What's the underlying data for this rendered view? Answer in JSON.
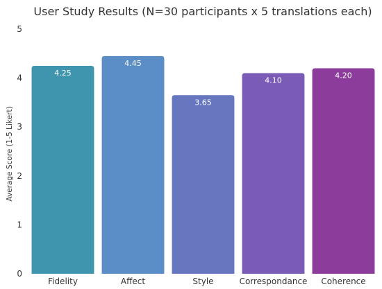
{
  "chart_data": {
    "type": "bar",
    "title": "User Study Results (N=30 participants x 5 translations each)",
    "xlabel": "",
    "ylabel": "Average Score (1-5 Likert)",
    "ylim": [
      0,
      5
    ],
    "yticks": [
      "0",
      "1",
      "2",
      "3",
      "4",
      "5"
    ],
    "categories": [
      "Fidelity",
      "Affect",
      "Style",
      "Correspondance",
      "Coherence"
    ],
    "values": [
      4.25,
      4.45,
      3.65,
      4.1,
      4.2
    ],
    "value_labels": [
      "4.25",
      "4.45",
      "3.65",
      "4.10",
      "4.20"
    ],
    "colors": [
      "#3e95ad",
      "#5b8ec6",
      "#6676bf",
      "#7a5bb5",
      "#8c3d9c"
    ],
    "grid": false,
    "legend": "none"
  }
}
